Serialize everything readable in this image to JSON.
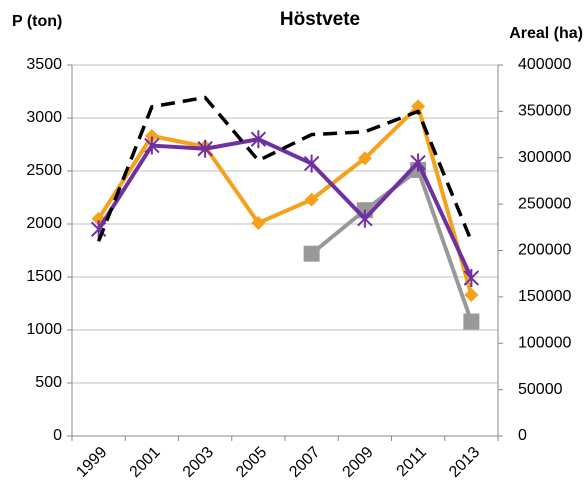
{
  "chart_data": {
    "type": "line",
    "title": "Höstvete",
    "y_label": "P (ton)",
    "y2_label": "Areal (ha)",
    "categories": [
      "1999",
      "2001",
      "2003",
      "2005",
      "2007",
      "2009",
      "2011",
      "2013"
    ],
    "series": [
      {
        "color": "#f5a11c",
        "marker": "diamond",
        "values": [
          2050,
          2830,
          2730,
          2010,
          2230,
          2620,
          3110,
          1330
        ]
      },
      {
        "color": "#999999",
        "marker": "square",
        "values": [
          null,
          null,
          null,
          null,
          1720,
          2130,
          2510,
          1080
        ]
      },
      {
        "color": "#7030a0",
        "marker": "asterisk",
        "values": [
          1950,
          2740,
          2710,
          2800,
          2570,
          2050,
          2580,
          1490
        ]
      },
      {
        "color": "#000000",
        "marker": "none",
        "dashed": true,
        "axis": "y2",
        "values": [
          210000,
          355000,
          365000,
          297000,
          325000,
          328000,
          350000,
          210000
        ]
      }
    ],
    "ylim": [
      0,
      3500
    ],
    "yticks": [
      0,
      500,
      1000,
      1500,
      2000,
      2500,
      3000,
      3500
    ],
    "y2lim": [
      0,
      400000
    ],
    "y2ticks": [
      0,
      50000,
      100000,
      150000,
      200000,
      250000,
      300000,
      350000,
      400000
    ],
    "grid": true
  }
}
